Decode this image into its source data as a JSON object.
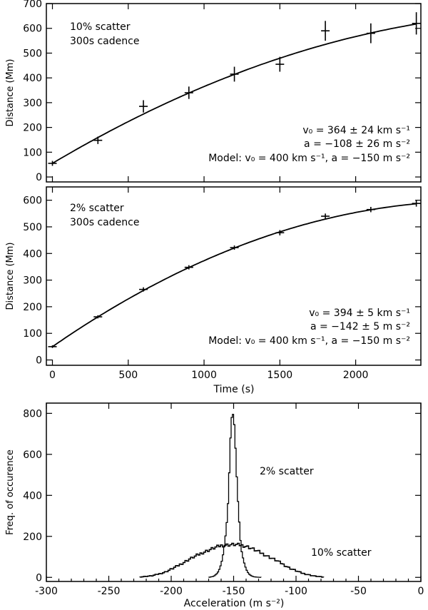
{
  "chart_data": [
    {
      "type": "scatter",
      "ylabel": "Distance (Mm)",
      "xlim": [
        -40,
        2430
      ],
      "ylim": [
        -20,
        700
      ],
      "yticks": [
        0,
        100,
        200,
        300,
        400,
        500,
        600,
        700
      ],
      "annotations": {
        "scatter_label": "10% scatter",
        "cadence_label": "300s cadence",
        "fit_v0": "v₀ = 364 ± 24 km s⁻¹",
        "fit_a": "a = −108 ± 26 m s⁻²",
        "model": "Model: v₀ = 400 km s⁻¹, a = −150 m s⁻²"
      },
      "points": {
        "x": [
          0,
          300,
          600,
          900,
          1200,
          1500,
          1800,
          2100,
          2400
        ],
        "y": [
          55,
          148,
          285,
          340,
          415,
          455,
          590,
          580,
          620
        ],
        "yerr": [
          10,
          15,
          25,
          25,
          30,
          30,
          40,
          40,
          45
        ]
      },
      "fit": {
        "v0_km_s": 364,
        "a_m_s2": -108,
        "y0": 55
      }
    },
    {
      "type": "scatter",
      "xlabel": "Time (s)",
      "ylabel": "Distance (Mm)",
      "xlim": [
        -40,
        2430
      ],
      "ylim": [
        -20,
        650
      ],
      "xticks": [
        0,
        500,
        1000,
        1500,
        2000
      ],
      "yticks": [
        0,
        100,
        200,
        300,
        400,
        500,
        600
      ],
      "annotations": {
        "scatter_label": "2% scatter",
        "cadence_label": "300s cadence",
        "fit_v0": "v₀ = 394 ± 5 km s⁻¹",
        "fit_a": "a = −142 ± 5 m s⁻²",
        "model": "Model: v₀ = 400 km s⁻¹, a = −150 m s⁻²"
      },
      "points": {
        "x": [
          0,
          300,
          600,
          900,
          1200,
          1500,
          1800,
          2100,
          2400
        ],
        "y": [
          50,
          162,
          265,
          348,
          422,
          478,
          540,
          565,
          588
        ],
        "yerr": [
          5,
          6,
          8,
          8,
          8,
          10,
          10,
          10,
          12
        ]
      },
      "fit": {
        "v0_km_s": 394,
        "a_m_s2": -142,
        "y0": 50
      }
    },
    {
      "type": "histogram",
      "xlabel": "Acceleration (m s⁻²)",
      "ylabel": "Freq. of occurence",
      "xlim": [
        -300,
        0
      ],
      "ylim": [
        -20,
        850
      ],
      "xticks": [
        -300,
        -250,
        -200,
        -150,
        -100,
        -50,
        0
      ],
      "yticks": [
        0,
        200,
        400,
        600,
        800
      ],
      "series": [
        {
          "name": "2% scatter",
          "x": [
            -170,
            -166,
            -163,
            -161,
            -159,
            -157,
            -155,
            -154,
            -153,
            -152,
            -151,
            -150,
            -149,
            -148,
            -147,
            -146,
            -145,
            -144,
            -142,
            -140,
            -138,
            -136,
            -134,
            -131,
            -128
          ],
          "y": [
            0,
            5,
            20,
            45,
            90,
            170,
            300,
            420,
            600,
            760,
            800,
            790,
            700,
            560,
            420,
            320,
            220,
            140,
            80,
            40,
            18,
            8,
            3,
            1,
            0
          ]
        },
        {
          "name": "10% scatter",
          "x": [
            -225,
            -215,
            -205,
            -195,
            -185,
            -175,
            -165,
            -160,
            -155,
            -150,
            -145,
            -140,
            -135,
            -125,
            -115,
            -105,
            -95,
            -85,
            -78
          ],
          "y": [
            2,
            8,
            25,
            55,
            90,
            120,
            145,
            155,
            158,
            160,
            158,
            152,
            140,
            110,
            80,
            45,
            20,
            6,
            1
          ]
        }
      ],
      "labels": {
        "narrow": "2% scatter",
        "wide": "10% scatter"
      }
    }
  ]
}
